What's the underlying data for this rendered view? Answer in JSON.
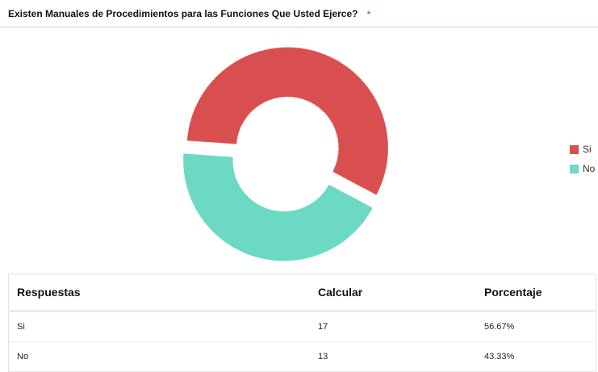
{
  "question": {
    "title": "Existen Manuales de Procedimientos para las Funciones Que Usted Ejerce?",
    "required_marker": "*"
  },
  "chart_data": {
    "type": "pie",
    "donut": true,
    "exploded": true,
    "labels": [
      "Si",
      "No"
    ],
    "values": [
      56.67,
      43.33
    ],
    "colors": [
      "#d94f50",
      "#6cd9c3"
    ],
    "legend_position": "right"
  },
  "legend": {
    "items": [
      {
        "label": "Si",
        "color": "#d94f50"
      },
      {
        "label": "No",
        "color": "#6cd9c3"
      }
    ]
  },
  "table": {
    "headers": [
      "Respuestas",
      "Calcular",
      "Porcentaje"
    ],
    "rows": [
      [
        "Si",
        "17",
        "56.67%"
      ],
      [
        "No",
        "13",
        "43.33%"
      ]
    ]
  }
}
